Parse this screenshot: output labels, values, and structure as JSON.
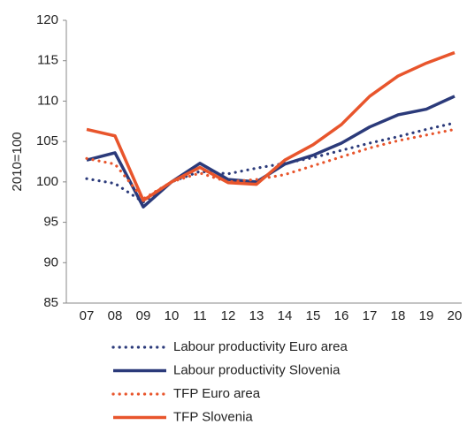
{
  "chart_data": {
    "type": "line",
    "y_label": "2010=100",
    "categories": [
      "07",
      "08",
      "09",
      "10",
      "11",
      "12",
      "13",
      "14",
      "15",
      "16",
      "17",
      "18",
      "19",
      "20"
    ],
    "ylim": [
      85,
      120
    ],
    "yticks": [
      85,
      90,
      95,
      100,
      105,
      110,
      115,
      120
    ],
    "series": [
      {
        "name": "Labour productivity Euro area",
        "color": "#2b3a7a",
        "style": "dotted",
        "values": [
          100.4,
          99.8,
          97.5,
          100,
          101.3,
          101.0,
          101.7,
          102.3,
          103.0,
          103.9,
          104.8,
          105.6,
          106.5,
          107.3
        ]
      },
      {
        "name": "Labour productivity Slovenia",
        "color": "#2b3a7a",
        "style": "solid",
        "values": [
          102.7,
          103.6,
          96.9,
          100,
          102.3,
          100.3,
          100.0,
          102.2,
          103.3,
          104.8,
          106.8,
          108.3,
          109.0,
          110.6
        ]
      },
      {
        "name": "TFP Euro area",
        "color": "#e8552c",
        "style": "dotted",
        "values": [
          102.9,
          102.2,
          97.9,
          100,
          101.1,
          100.0,
          100.3,
          100.9,
          102.0,
          103.1,
          104.2,
          105.1,
          105.8,
          106.5
        ]
      },
      {
        "name": "TFP Slovenia",
        "color": "#e8552c",
        "style": "solid",
        "values": [
          106.5,
          105.7,
          97.7,
          100,
          101.8,
          99.9,
          99.7,
          102.7,
          104.6,
          107.1,
          110.6,
          113.1,
          114.7,
          116.0
        ]
      }
    ]
  }
}
